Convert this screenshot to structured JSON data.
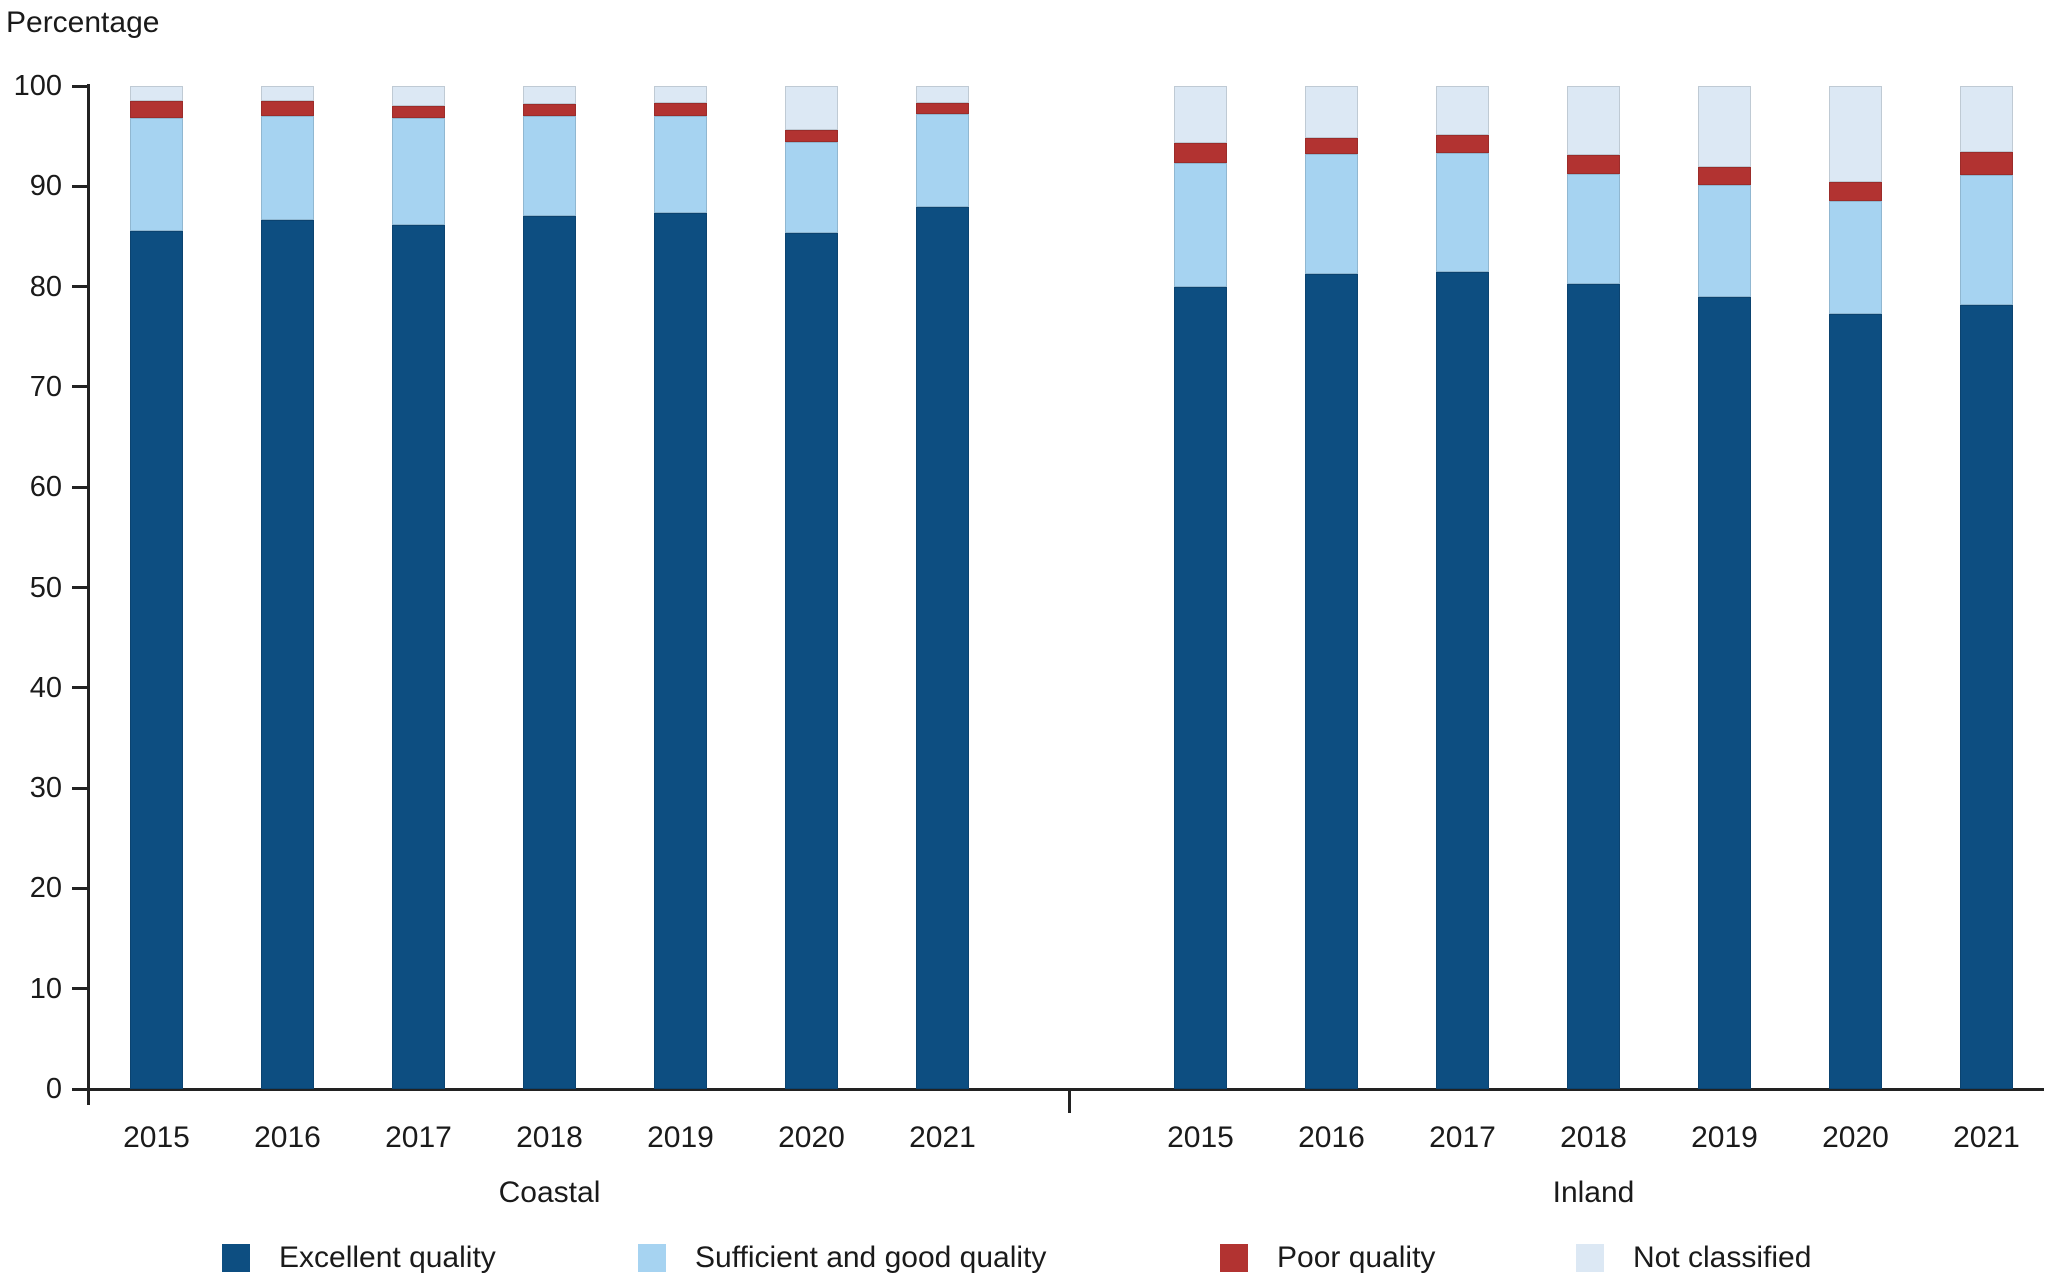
{
  "title": "Percentage",
  "colors": {
    "excellent": "#0d4e81",
    "sufficient_good": "#a6d3f1",
    "poor": "#b23331",
    "not_classified": "#dce8f4",
    "axis": "#222222",
    "text": "#1a1a1a"
  },
  "chart_data": {
    "type": "bar",
    "stacked": true,
    "unit": "percent",
    "ylabel": "Percentage",
    "ylim": [
      0,
      100
    ],
    "yticks": [
      0,
      10,
      20,
      30,
      40,
      50,
      60,
      70,
      80,
      90,
      100
    ],
    "grid": false,
    "legend_position": "bottom",
    "legend": [
      {
        "label": "Excellent quality",
        "color": "#0d4e81"
      },
      {
        "label": "Sufficient and good quality",
        "color": "#a6d3f1"
      },
      {
        "label": "Poor quality",
        "color": "#b23331"
      },
      {
        "label": "Not classified",
        "color": "#dce8f4"
      }
    ],
    "groups": [
      {
        "label": "Coastal",
        "categories": [
          "2015",
          "2016",
          "2017",
          "2018",
          "2019",
          "2020",
          "2021"
        ],
        "series": [
          {
            "name": "Excellent quality",
            "values": [
              85.5,
              86.6,
              86.1,
              87.0,
              87.3,
              85.3,
              87.9
            ]
          },
          {
            "name": "Sufficient and good quality",
            "values": [
              11.3,
              10.4,
              10.7,
              10.0,
              9.7,
              9.1,
              9.3
            ]
          },
          {
            "name": "Poor quality",
            "values": [
              1.7,
              1.5,
              1.2,
              1.2,
              1.3,
              1.2,
              1.1
            ]
          },
          {
            "name": "Not classified",
            "values": [
              1.5,
              1.5,
              2.0,
              1.8,
              1.7,
              4.4,
              1.7
            ]
          }
        ]
      },
      {
        "label": "Inland",
        "categories": [
          "2015",
          "2016",
          "2017",
          "2018",
          "2019",
          "2020",
          "2021"
        ],
        "series": [
          {
            "name": "Excellent quality",
            "values": [
              80.0,
              81.3,
              81.5,
              80.3,
              79.0,
              77.3,
              78.2
            ]
          },
          {
            "name": "Sufficient and good quality",
            "values": [
              12.3,
              11.9,
              11.8,
              10.9,
              11.1,
              11.2,
              12.9
            ]
          },
          {
            "name": "Poor quality",
            "values": [
              2.0,
              1.6,
              1.8,
              1.9,
              1.8,
              1.9,
              2.3
            ]
          },
          {
            "name": "Not classified",
            "values": [
              5.7,
              5.2,
              4.9,
              6.9,
              8.1,
              9.6,
              6.6
            ]
          }
        ]
      }
    ]
  }
}
